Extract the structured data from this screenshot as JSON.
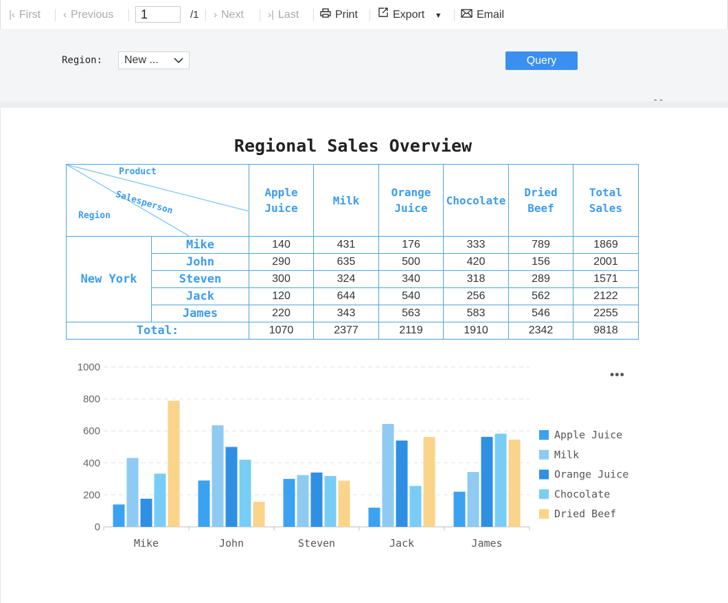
{
  "toolbar": {
    "first": "First",
    "previous": "Previous",
    "page_value": "1",
    "page_count": "/1",
    "next": "Next",
    "last": "Last",
    "print": "Print",
    "export": "Export",
    "email": "Email"
  },
  "filter": {
    "region_label": "Region:",
    "region_value": "New ...",
    "query": "Query"
  },
  "report": {
    "title": "Regional Sales Overview",
    "corner": {
      "product": "Product",
      "salesperson": "Salesperson",
      "region": "Region"
    },
    "columns": [
      [
        "Apple",
        "Juice"
      ],
      [
        "Milk"
      ],
      [
        "Orange",
        "Juice"
      ],
      [
        "Chocolate"
      ],
      [
        "Dried",
        "Beef"
      ],
      [
        "Total",
        "Sales"
      ]
    ],
    "region": "New York",
    "rows": [
      {
        "name": "Mike",
        "values": [
          "140",
          "431",
          "176",
          "333",
          "789",
          "1869"
        ]
      },
      {
        "name": "John",
        "values": [
          "290",
          "635",
          "500",
          "420",
          "156",
          "2001"
        ]
      },
      {
        "name": "Steven",
        "values": [
          "300",
          "324",
          "340",
          "318",
          "289",
          "1571"
        ]
      },
      {
        "name": "Jack",
        "values": [
          "120",
          "644",
          "540",
          "256",
          "562",
          "2122"
        ]
      },
      {
        "name": "James",
        "values": [
          "220",
          "343",
          "563",
          "583",
          "546",
          "2255"
        ]
      }
    ],
    "total_label": "Total:",
    "totals": [
      "1070",
      "2377",
      "2119",
      "1910",
      "2342",
      "9818"
    ]
  },
  "chart_data": {
    "type": "bar",
    "categories": [
      "Mike",
      "John",
      "Steven",
      "Jack",
      "James"
    ],
    "series": [
      {
        "name": "Apple Juice",
        "color": "#3ba2f2",
        "values": [
          140,
          290,
          300,
          120,
          220
        ]
      },
      {
        "name": "Milk",
        "color": "#8ecaf2",
        "values": [
          431,
          635,
          324,
          644,
          343
        ]
      },
      {
        "name": "Orange Juice",
        "color": "#2f8fe3",
        "values": [
          176,
          500,
          340,
          540,
          563
        ]
      },
      {
        "name": "Chocolate",
        "color": "#78cdf6",
        "values": [
          333,
          420,
          318,
          256,
          583
        ]
      },
      {
        "name": "Dried Beef",
        "color": "#f9d48a",
        "values": [
          789,
          156,
          289,
          562,
          546
        ]
      }
    ],
    "yticks": [
      "0",
      "200",
      "400",
      "600",
      "800",
      "1000"
    ],
    "ylim": [
      0,
      1000
    ],
    "grid": true,
    "legend": "right"
  }
}
